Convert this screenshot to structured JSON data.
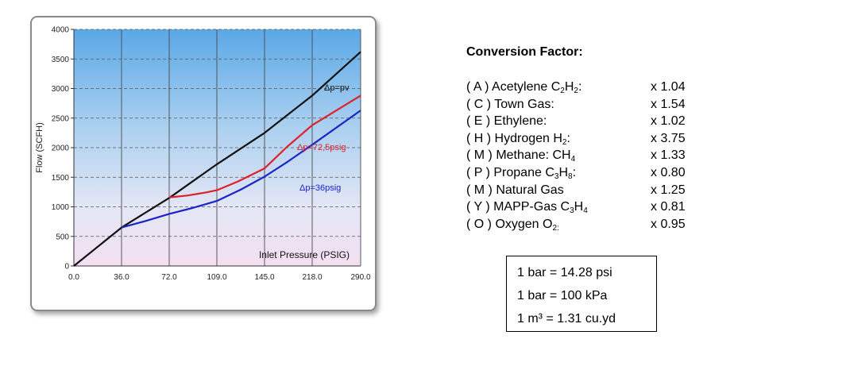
{
  "chart_data": {
    "type": "line",
    "xlabel": "Inlet Pressure (PSIG)",
    "ylabel": "Flow (SCFH)",
    "x_ticks": [
      "0.0",
      "36.0",
      "72.0",
      "109.0",
      "145.0",
      "218.0",
      "290.0"
    ],
    "y_ticks": [
      0,
      500,
      1000,
      1500,
      2000,
      2500,
      3000,
      3500,
      4000
    ],
    "ylim": [
      0,
      4000
    ],
    "grid": true,
    "series": [
      {
        "name": "Δp=pv",
        "color": "#111111",
        "points": [
          [
            0,
            0
          ],
          [
            36,
            650
          ],
          [
            72,
            1150
          ],
          [
            109,
            1720
          ],
          [
            145,
            2250
          ],
          [
            218,
            2880
          ],
          [
            290,
            3620
          ]
        ]
      },
      {
        "name": "Δp=72,5psig",
        "color": "#e0202a",
        "points": [
          [
            72,
            1160
          ],
          [
            86,
            1190
          ],
          [
            100,
            1240
          ],
          [
            109,
            1280
          ],
          [
            125,
            1430
          ],
          [
            145,
            1650
          ],
          [
            180,
            2020
          ],
          [
            218,
            2380
          ],
          [
            290,
            2880
          ]
        ]
      },
      {
        "name": "Δp=36psig",
        "color": "#1a25c8",
        "points": [
          [
            36,
            650
          ],
          [
            54,
            760
          ],
          [
            72,
            880
          ],
          [
            90,
            980
          ],
          [
            109,
            1100
          ],
          [
            127,
            1290
          ],
          [
            145,
            1510
          ],
          [
            180,
            1760
          ],
          [
            218,
            2050
          ],
          [
            290,
            2630
          ]
        ]
      }
    ]
  },
  "conversion": {
    "title": "Conversion Factor:",
    "gases": [
      {
        "parts": [
          "( A ) Acetylene C",
          "2",
          "H",
          "2",
          ":"
        ],
        "factor": "x 1.04"
      },
      {
        "parts": [
          "( C ) Town Gas:"
        ],
        "factor": "x 1.54"
      },
      {
        "parts": [
          "( E ) Ethylene:"
        ],
        "factor": "x 1.02"
      },
      {
        "parts": [
          "( H ) Hydrogen H",
          "2",
          ":"
        ],
        "factor": "x 3.75"
      },
      {
        "parts": [
          "( M ) Methane: CH",
          "4"
        ],
        "factor": "x 1.33"
      },
      {
        "parts": [
          "( P ) Propane C",
          "3",
          "H",
          "8",
          ":"
        ],
        "factor": "x 0.80"
      },
      {
        "parts": [
          "( M ) Natural Gas"
        ],
        "factor": "x 1.25"
      },
      {
        "parts": [
          "( Y ) MAPP-Gas C",
          "3",
          "H",
          "4"
        ],
        "factor": "x 0.81"
      },
      {
        "parts": [
          "( O ) Oxygen O",
          "2:"
        ],
        "factor": "x 0.95"
      }
    ]
  },
  "units": [
    "1 bar = 14.28 psi",
    "1 bar = 100 kPa",
    "1 m³ =  1.31 cu.yd"
  ]
}
